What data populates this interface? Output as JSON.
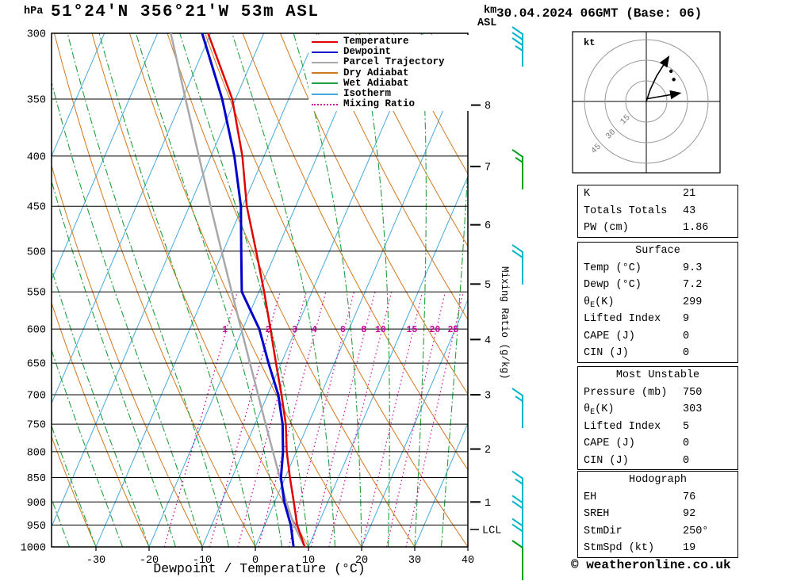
{
  "header": {
    "pressure_unit": "hPa",
    "station_title": "51°24'N 356°21'W 53m ASL",
    "km_label": "km",
    "asl_label": "ASL",
    "datetime_title": "30.04.2024 06GMT (Base: 06)"
  },
  "axes": {
    "pressure_ticks": [
      300,
      350,
      400,
      450,
      500,
      550,
      600,
      650,
      700,
      750,
      800,
      850,
      900,
      950,
      1000
    ],
    "temp_ticks": [
      -30,
      -20,
      -10,
      0,
      10,
      20,
      30,
      40
    ],
    "xlabel": "Dewpoint / Temperature (°C)",
    "mixing_ratio_label": "Mixing Ratio (g/kg)",
    "km_ticks": [
      {
        "label": "8",
        "pressure": 355
      },
      {
        "label": "7",
        "pressure": 410
      },
      {
        "label": "6",
        "pressure": 470
      },
      {
        "label": "5",
        "pressure": 540
      },
      {
        "label": "4",
        "pressure": 615
      },
      {
        "label": "3",
        "pressure": 700
      },
      {
        "label": "2",
        "pressure": 795
      },
      {
        "label": "1",
        "pressure": 900
      }
    ],
    "lcl_label": "LCL",
    "lcl_pressure": 960
  },
  "legend": [
    {
      "label": "Temperature",
      "color": "#e00000",
      "style": "solid"
    },
    {
      "label": "Dewpoint",
      "color": "#0000cc",
      "style": "solid"
    },
    {
      "label": "Parcel Trajectory",
      "color": "#a8a8a8",
      "style": "solid"
    },
    {
      "label": "Dry Adiabat",
      "color": "#d2781e",
      "style": "solid"
    },
    {
      "label": "Wet Adiabat",
      "color": "#22a03c",
      "style": "solid"
    },
    {
      "label": "Isotherm",
      "color": "#45aadd",
      "style": "solid"
    },
    {
      "label": "Mixing Ratio",
      "color": "#cc0099",
      "style": "dotted"
    }
  ],
  "chart_data": {
    "type": "skewt-log-p-sounding",
    "pressure_levels": [
      1000,
      950,
      900,
      850,
      800,
      750,
      700,
      650,
      600,
      550,
      500,
      450,
      400,
      350,
      300
    ],
    "temperature_c": [
      9.3,
      6.1,
      3.6,
      0.9,
      -1.8,
      -4.2,
      -7.4,
      -11,
      -14.8,
      -19,
      -23.8,
      -29.2,
      -34.1,
      -40.6,
      -50.5
    ],
    "dewpoint_c": [
      7.2,
      4.9,
      1.8,
      -0.8,
      -2.5,
      -4.8,
      -8,
      -12.4,
      -16.9,
      -23.2,
      -26.6,
      -30.3,
      -35.6,
      -42.5,
      -51.6
    ],
    "parcel_c": [
      9.3,
      5.5,
      2.2,
      -1,
      -4.4,
      -8,
      -11.8,
      -15.9,
      -20.3,
      -25.1,
      -30.3,
      -36,
      -42.3,
      -49.4,
      -57.5
    ],
    "mixing_ratio_lines": [
      1,
      2,
      3,
      4,
      6,
      8,
      10,
      15,
      20,
      25
    ],
    "isotherm_step_c": 10,
    "dry_adiabat_step_c": 10,
    "wet_adiabat_step_c": 5,
    "pressure_range": [
      300,
      1000
    ],
    "temp_axis_range": [
      -30,
      40
    ],
    "wind_barbs": [
      {
        "pressure": 300,
        "speed_kt": 35,
        "color": "cyan"
      },
      {
        "pressure": 400,
        "speed_kt": 15,
        "color": "green"
      },
      {
        "pressure": 500,
        "speed_kt": 20,
        "color": "cyan"
      },
      {
        "pressure": 700,
        "speed_kt": 15,
        "color": "cyan"
      },
      {
        "pressure": 850,
        "speed_kt": 15,
        "color": "cyan"
      },
      {
        "pressure": 900,
        "speed_kt": 20,
        "color": "cyan"
      },
      {
        "pressure": 950,
        "speed_kt": 20,
        "color": "cyan"
      },
      {
        "pressure": 1000,
        "speed_kt": 10,
        "color": "green"
      }
    ],
    "hodograph": {
      "unit": "kt",
      "rings": [
        15,
        30,
        45
      ],
      "trace": [
        [
          0,
          0
        ],
        [
          3,
          9
        ],
        [
          7.5,
          18.5
        ],
        [
          16,
          32
        ]
      ],
      "storm_arrow": [
        [
          1,
          2
        ],
        [
          24,
          6
        ]
      ],
      "dots": [
        [
          20,
          16
        ],
        [
          18,
          22
        ]
      ]
    },
    "colors": {
      "temperature": "#e00000",
      "dewpoint": "#0000cc",
      "parcel": "#a8a8a8",
      "dry_adiabat": "#d2781e",
      "wet_adiabat": "#22a03c",
      "isotherm": "#45aadd",
      "mixing_ratio": "#cc0099",
      "wind_cyan": "#00b4cc",
      "wind_green": "#00a018",
      "grid": "#000000"
    }
  },
  "tables": {
    "indices": {
      "rows": [
        {
          "label": "K",
          "value": "21"
        },
        {
          "label": "Totals Totals",
          "value": "43"
        },
        {
          "label": "PW (cm)",
          "value": "1.86"
        }
      ]
    },
    "surface": {
      "title": "Surface",
      "rows": [
        {
          "label": "Temp (°C)",
          "value": "9.3"
        },
        {
          "label": "Dewp (°C)",
          "value": "7.2"
        },
        {
          "label": "θ",
          "sub": "E",
          "post": "(K)",
          "value": "299"
        },
        {
          "label": "Lifted Index",
          "value": "9"
        },
        {
          "label": "CAPE (J)",
          "value": "0"
        },
        {
          "label": "CIN (J)",
          "value": "0"
        }
      ]
    },
    "most_unstable": {
      "title": "Most Unstable",
      "rows": [
        {
          "label": "Pressure (mb)",
          "value": "750"
        },
        {
          "label": "θ",
          "sub": "E",
          "post": " (K)",
          "value": "303"
        },
        {
          "label": "Lifted Index",
          "value": "5"
        },
        {
          "label": "CAPE (J)",
          "value": "0"
        },
        {
          "label": "CIN (J)",
          "value": "0"
        }
      ]
    },
    "hodograph_info": {
      "title": "Hodograph",
      "rows": [
        {
          "label": "EH",
          "value": "76"
        },
        {
          "label": "SREH",
          "value": "92"
        },
        {
          "label": "StmDir",
          "value": "250°"
        },
        {
          "label": "StmSpd (kt)",
          "value": "19"
        }
      ]
    }
  },
  "footer": {
    "copyright": "© weatheronline.co.uk"
  }
}
